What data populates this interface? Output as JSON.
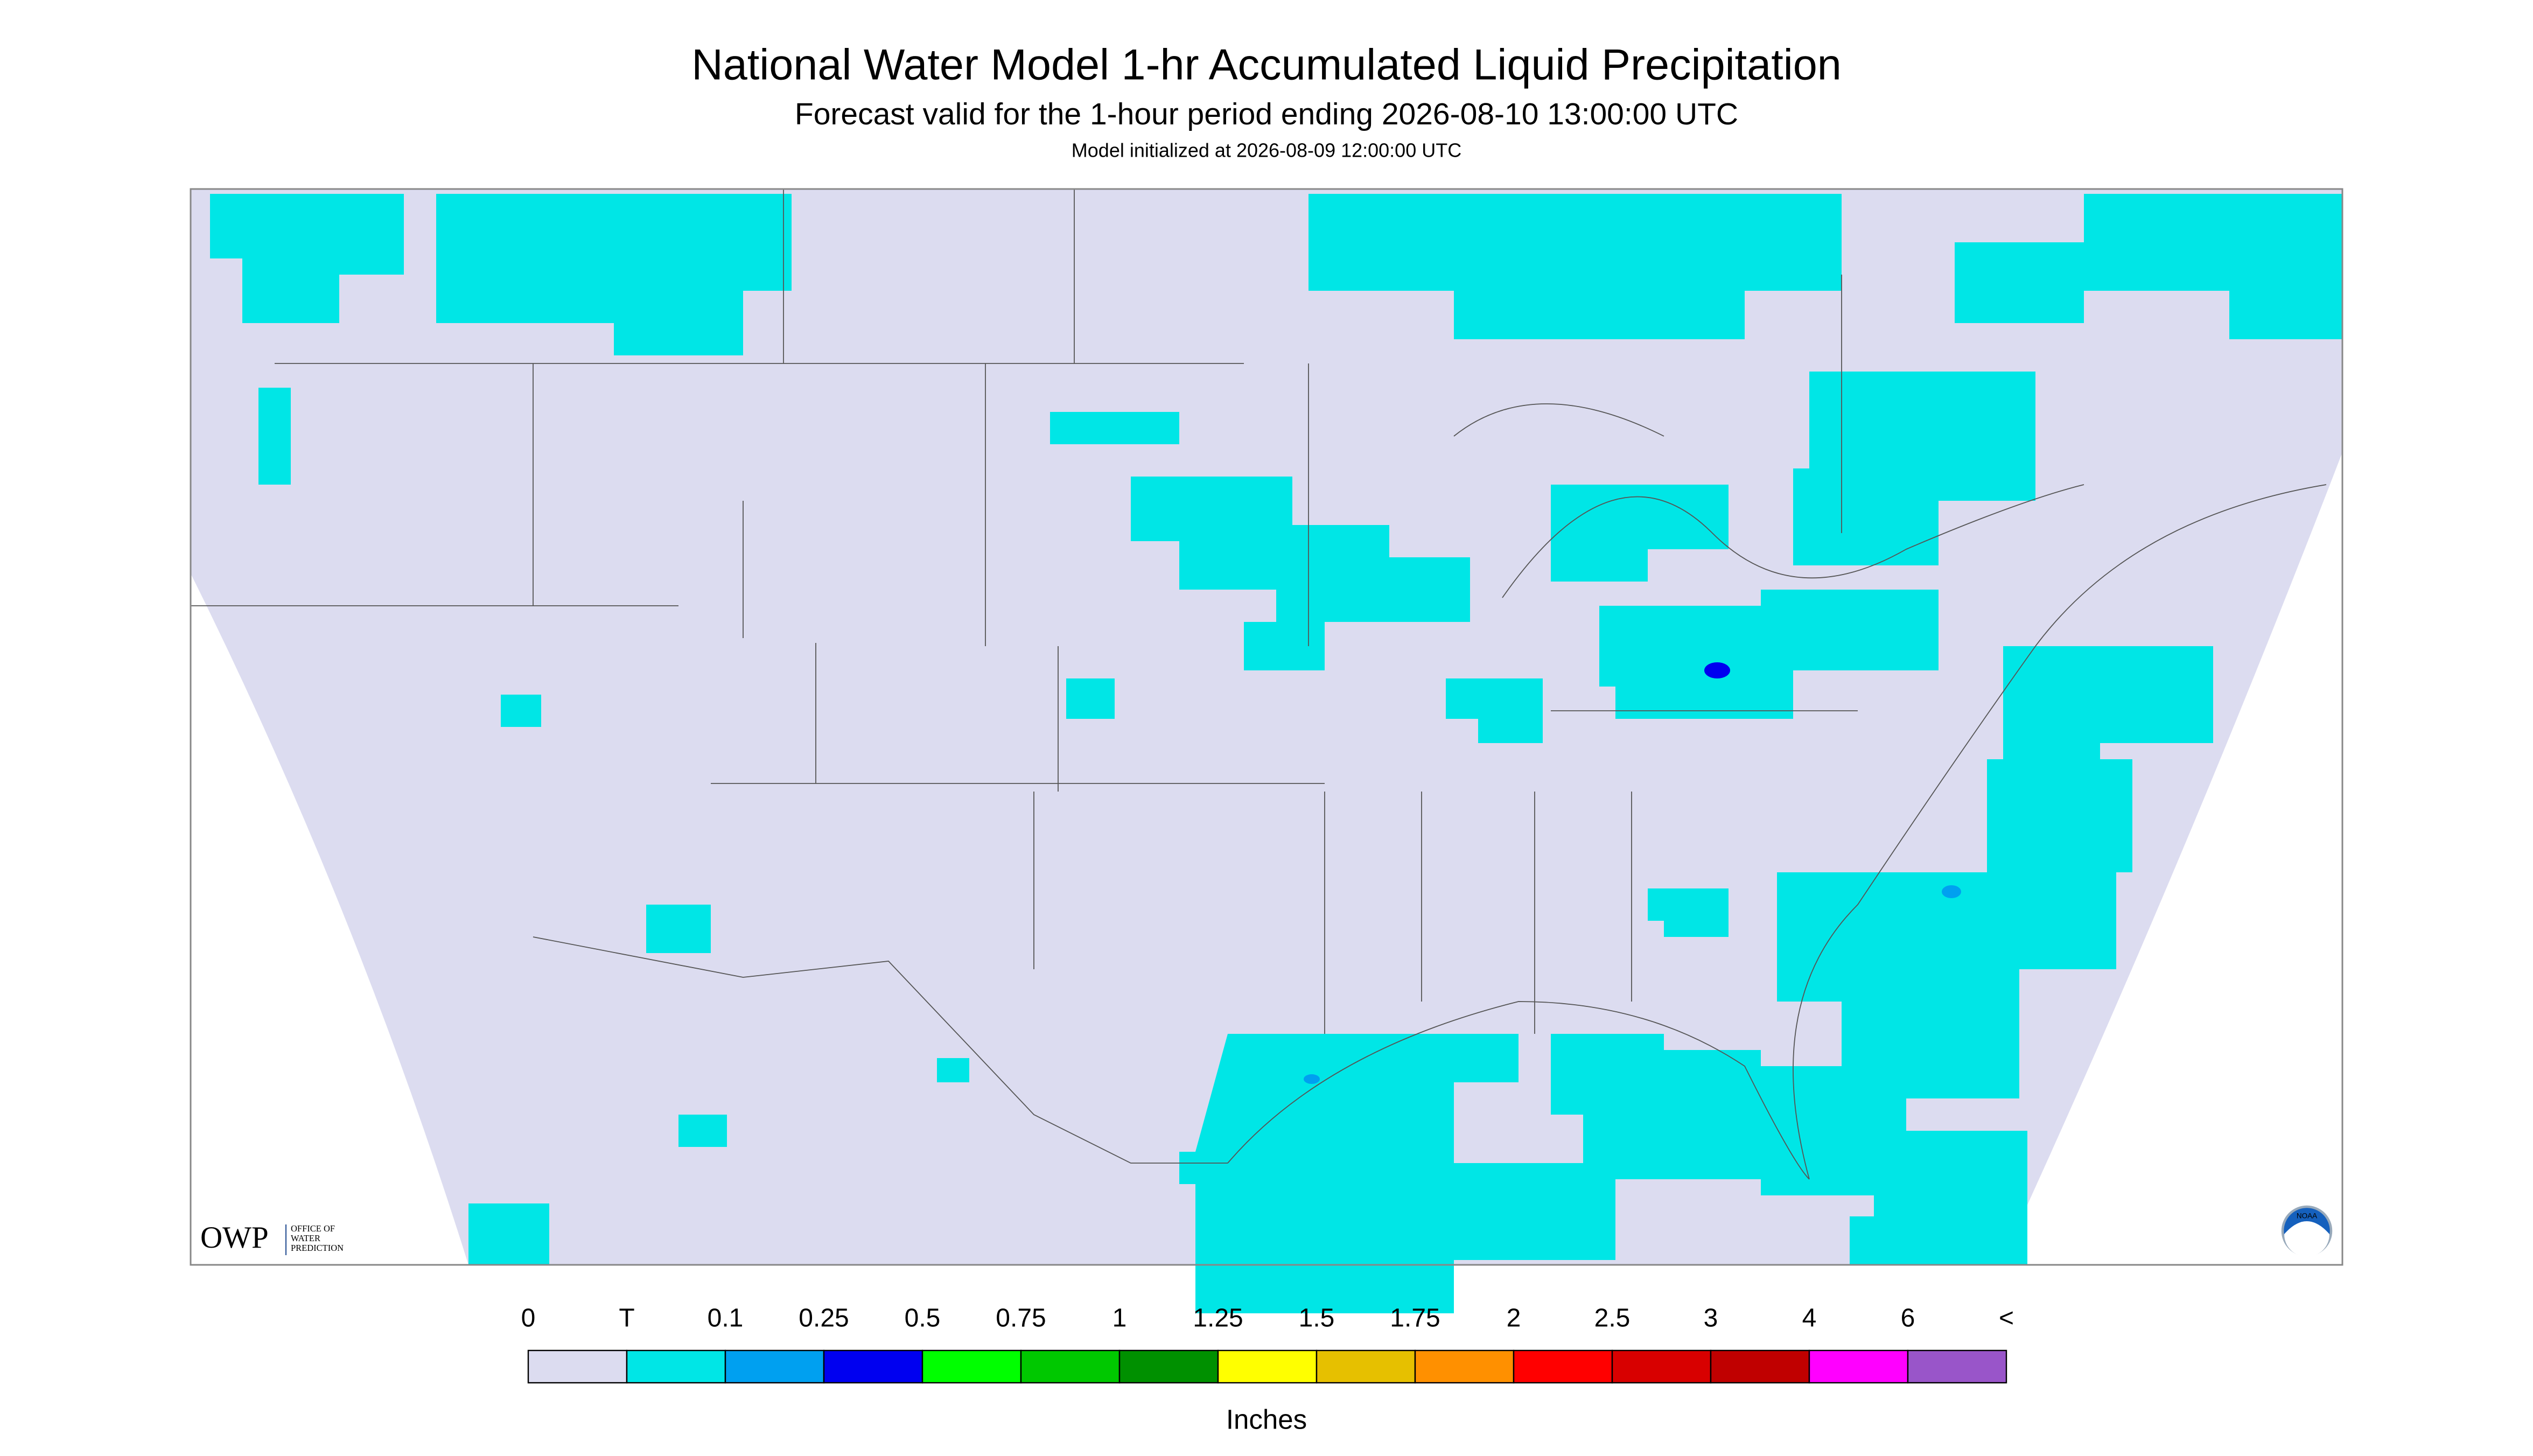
{
  "header": {
    "title": "National Water Model 1-hr Accumulated Liquid Precipitation",
    "subtitle": "Forecast valid for the 1-hour period ending 2026-08-10 13:00:00 UTC",
    "note": "Model initialized at 2026-08-09 12:00:00 UTC"
  },
  "legend": {
    "labels": [
      "0",
      "T",
      "0.1",
      "0.25",
      "0.5",
      "0.75",
      "1",
      "1.25",
      "1.5",
      "1.75",
      "2",
      "2.5",
      "3",
      "4",
      "6",
      "<"
    ],
    "colors": [
      "#dcdcf0",
      "#00e6e6",
      "#00a0f0",
      "#0000f0",
      "#00ff00",
      "#00c800",
      "#009000",
      "#ffff00",
      "#e6c000",
      "#ff9000",
      "#ff0000",
      "#d80000",
      "#c00000",
      "#ff00ff",
      "#9955c9"
    ],
    "unit": "Inches"
  },
  "logos": {
    "owp": "OWP",
    "owp_lines": [
      "OFFICE OF",
      "WATER",
      "PREDICTION"
    ],
    "noaa": "NOAA"
  }
}
